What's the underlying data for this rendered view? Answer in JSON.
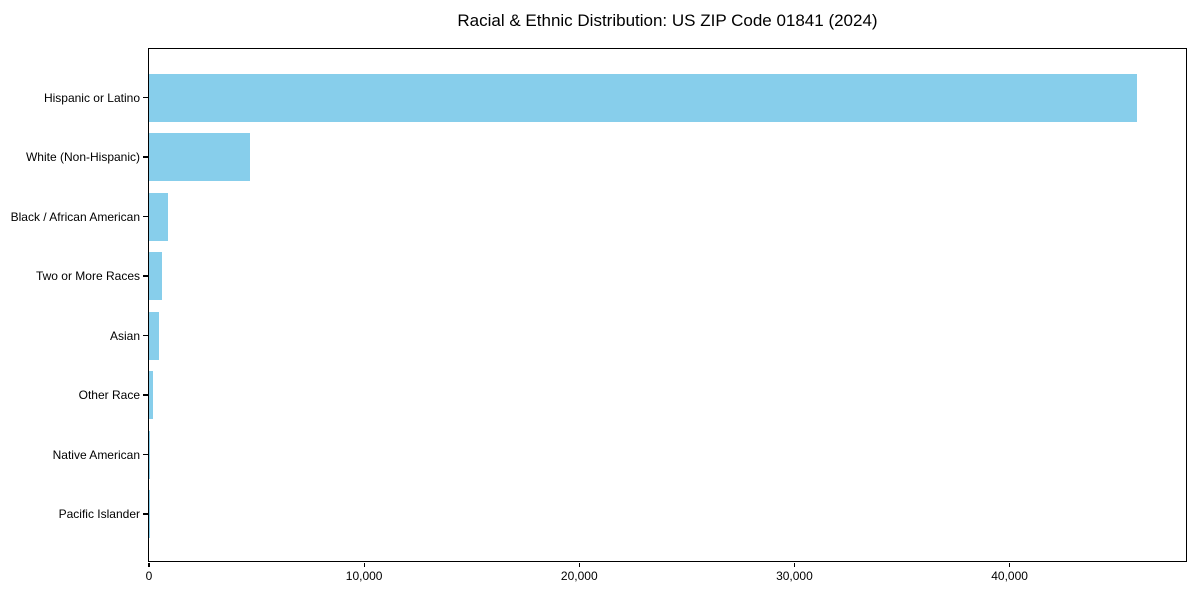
{
  "chart_data": {
    "type": "bar",
    "orientation": "horizontal",
    "title": "Racial & Ethnic Distribution: US ZIP Code 01841 (2024)",
    "categories": [
      "Hispanic or Latino",
      "White (Non-Hispanic)",
      "Black / African American",
      "Two or More Races",
      "Asian",
      "Other Race",
      "Native American",
      "Pacific Islander"
    ],
    "values": [
      45900,
      4700,
      900,
      600,
      470,
      200,
      50,
      20
    ],
    "xlabel": "",
    "ylabel": "",
    "xlim": [
      0,
      48200
    ],
    "x_ticks": [
      0,
      10000,
      20000,
      30000,
      40000
    ],
    "x_tick_labels": [
      "0",
      "10,000",
      "20,000",
      "30,000",
      "40,000"
    ],
    "bar_color": "#87CEEB",
    "text_color": "#000000",
    "background": "#FFFFFF",
    "grid": false,
    "legend": null
  }
}
